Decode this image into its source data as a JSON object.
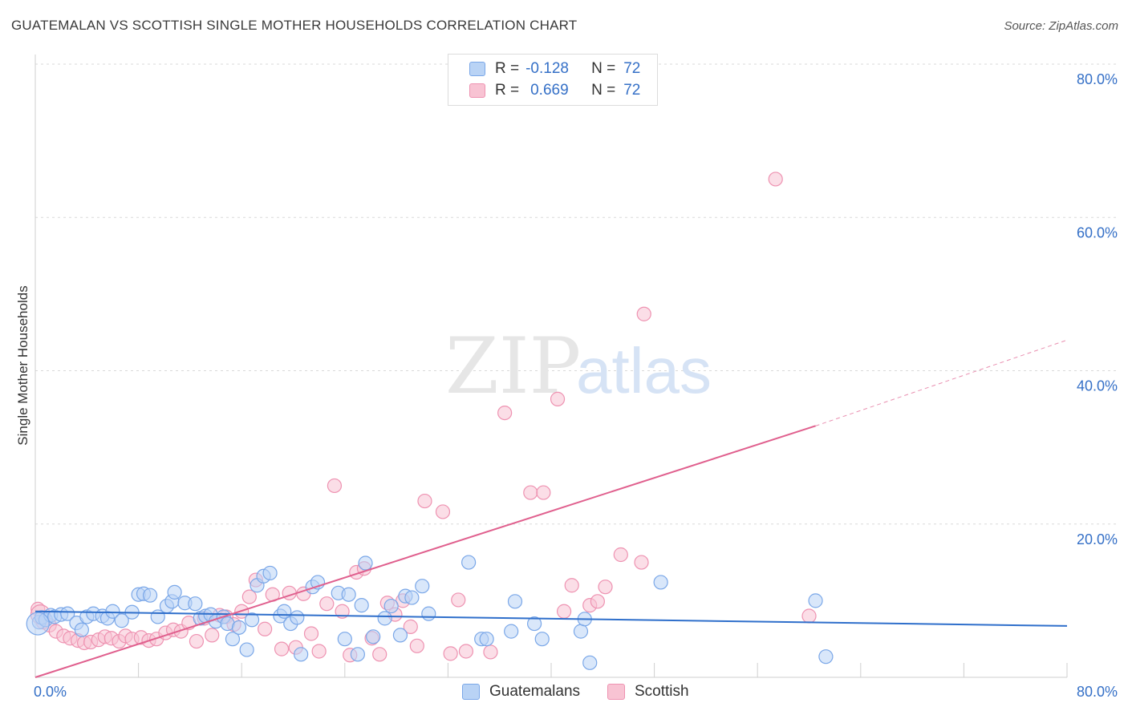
{
  "title": "GUATEMALAN VS SCOTTISH SINGLE MOTHER HOUSEHOLDS CORRELATION CHART",
  "source": "Source: ZipAtlas.com",
  "watermark": {
    "zip": "ZIP",
    "atlas": "atlas"
  },
  "colors": {
    "blue_fill": "#b9d3f5",
    "blue_stroke": "#7aa7e8",
    "blue_line": "#2f6fcb",
    "pink_fill": "#f8c3d3",
    "pink_stroke": "#ee92b1",
    "pink_line": "#e0608e",
    "axis_text": "#3570c7"
  },
  "legend": {
    "rows": [
      {
        "r_label": "R =",
        "r_value": "-0.128",
        "n_label": "N =",
        "n_value": "72"
      },
      {
        "r_label": "R =",
        "r_value": "0.669",
        "n_label": "N =",
        "n_value": "72"
      }
    ]
  },
  "bottom_legend": {
    "blue": "Guatemalans",
    "pink": "Scottish"
  },
  "chart_data": {
    "type": "scatter",
    "title": "GUATEMALAN VS SCOTTISH SINGLE MOTHER HOUSEHOLDS CORRELATION CHART",
    "xlabel": "",
    "ylabel": "Single Mother Households",
    "xlim": [
      0,
      80
    ],
    "ylim": [
      0,
      82
    ],
    "x_tick_labels": [
      "0.0%",
      "80.0%"
    ],
    "y_tick_values": [
      20,
      40,
      60,
      80
    ],
    "y_tick_labels": [
      "20.0%",
      "40.0%",
      "60.0%",
      "80.0%"
    ],
    "series": [
      {
        "name": "Guatemalans",
        "r": -0.128,
        "n": 72,
        "trend": {
          "x0": 0,
          "y0": 8.6,
          "x1": 80,
          "y1": 6.7
        },
        "points": [
          [
            0.3,
            7.2
          ],
          [
            0.5,
            7.8
          ],
          [
            0.8,
            7.5
          ],
          [
            1.2,
            8.1
          ],
          [
            1.5,
            7.9
          ],
          [
            2.0,
            8.2
          ],
          [
            2.5,
            8.3
          ],
          [
            3.2,
            7.1
          ],
          [
            3.6,
            6.2
          ],
          [
            4.0,
            7.9
          ],
          [
            4.5,
            8.3
          ],
          [
            5.2,
            8.0
          ],
          [
            5.6,
            7.7
          ],
          [
            6.0,
            8.6
          ],
          [
            6.7,
            7.4
          ],
          [
            7.5,
            8.5
          ],
          [
            8.0,
            10.8
          ],
          [
            8.4,
            10.9
          ],
          [
            8.9,
            10.7
          ],
          [
            9.5,
            7.9
          ],
          [
            10.2,
            9.3
          ],
          [
            10.6,
            9.9
          ],
          [
            10.8,
            11.1
          ],
          [
            11.6,
            9.7
          ],
          [
            12.4,
            9.6
          ],
          [
            12.8,
            7.7
          ],
          [
            13.2,
            8.0
          ],
          [
            13.6,
            8.2
          ],
          [
            14.0,
            7.3
          ],
          [
            14.6,
            7.9
          ],
          [
            14.9,
            7.0
          ],
          [
            15.3,
            5.0
          ],
          [
            15.8,
            6.5
          ],
          [
            16.4,
            3.6
          ],
          [
            16.8,
            7.5
          ],
          [
            17.2,
            12.0
          ],
          [
            17.7,
            13.2
          ],
          [
            18.2,
            13.6
          ],
          [
            19.0,
            8.0
          ],
          [
            19.3,
            8.6
          ],
          [
            19.8,
            7.0
          ],
          [
            20.3,
            7.8
          ],
          [
            20.6,
            3.0
          ],
          [
            21.5,
            11.8
          ],
          [
            21.9,
            12.4
          ],
          [
            23.5,
            11.0
          ],
          [
            24.0,
            5.0
          ],
          [
            24.3,
            10.8
          ],
          [
            25.0,
            3.0
          ],
          [
            25.3,
            9.4
          ],
          [
            25.6,
            14.9
          ],
          [
            26.2,
            5.3
          ],
          [
            27.1,
            7.7
          ],
          [
            27.6,
            9.3
          ],
          [
            28.3,
            5.5
          ],
          [
            28.7,
            10.6
          ],
          [
            29.2,
            10.4
          ],
          [
            30.0,
            11.9
          ],
          [
            30.5,
            8.3
          ],
          [
            33.6,
            15.0
          ],
          [
            34.6,
            5.0
          ],
          [
            35.0,
            5.0
          ],
          [
            36.9,
            6.0
          ],
          [
            37.2,
            9.9
          ],
          [
            38.7,
            7.0
          ],
          [
            39.3,
            5.0
          ],
          [
            42.3,
            6.0
          ],
          [
            42.6,
            7.6
          ],
          [
            43.0,
            1.9
          ],
          [
            48.5,
            12.4
          ],
          [
            60.5,
            10.0
          ],
          [
            61.3,
            2.7
          ]
        ]
      },
      {
        "name": "Scottish",
        "r": 0.669,
        "n": 72,
        "trend": {
          "x0": 0,
          "y0": 0,
          "x1": 60.5,
          "y1": 32.8,
          "dash_x1": 80,
          "dash_y1": 44
        },
        "points": [
          [
            0.2,
            8.9
          ],
          [
            0.6,
            7.2
          ],
          [
            1.1,
            6.8
          ],
          [
            1.6,
            6.0
          ],
          [
            2.2,
            5.4
          ],
          [
            2.7,
            5.1
          ],
          [
            3.3,
            4.8
          ],
          [
            3.8,
            4.5
          ],
          [
            4.3,
            4.6
          ],
          [
            4.9,
            4.9
          ],
          [
            5.4,
            5.3
          ],
          [
            5.9,
            5.1
          ],
          [
            6.5,
            4.7
          ],
          [
            7.0,
            5.4
          ],
          [
            7.5,
            5.0
          ],
          [
            8.2,
            5.2
          ],
          [
            8.8,
            4.8
          ],
          [
            9.4,
            5.0
          ],
          [
            10.1,
            5.8
          ],
          [
            10.7,
            6.2
          ],
          [
            11.3,
            6.0
          ],
          [
            11.9,
            7.1
          ],
          [
            12.5,
            4.7
          ],
          [
            13.1,
            7.7
          ],
          [
            13.7,
            5.5
          ],
          [
            14.3,
            8.1
          ],
          [
            14.8,
            7.9
          ],
          [
            15.4,
            6.9
          ],
          [
            16.0,
            8.6
          ],
          [
            16.6,
            10.5
          ],
          [
            17.1,
            12.7
          ],
          [
            17.8,
            6.3
          ],
          [
            18.4,
            10.8
          ],
          [
            19.1,
            3.7
          ],
          [
            19.7,
            11.0
          ],
          [
            20.2,
            3.9
          ],
          [
            20.8,
            10.9
          ],
          [
            21.4,
            5.7
          ],
          [
            22.0,
            3.4
          ],
          [
            22.6,
            9.6
          ],
          [
            23.2,
            25.0
          ],
          [
            23.8,
            8.6
          ],
          [
            24.4,
            2.9
          ],
          [
            24.9,
            13.7
          ],
          [
            25.5,
            14.2
          ],
          [
            26.1,
            5.1
          ],
          [
            26.7,
            3.0
          ],
          [
            27.3,
            9.7
          ],
          [
            27.9,
            8.2
          ],
          [
            28.5,
            10.0
          ],
          [
            29.1,
            6.6
          ],
          [
            29.6,
            4.1
          ],
          [
            30.2,
            23.0
          ],
          [
            31.6,
            21.6
          ],
          [
            32.2,
            3.1
          ],
          [
            32.8,
            10.1
          ],
          [
            33.4,
            3.4
          ],
          [
            35.3,
            3.3
          ],
          [
            36.4,
            34.5
          ],
          [
            38.4,
            24.1
          ],
          [
            39.4,
            24.1
          ],
          [
            40.5,
            36.3
          ],
          [
            41.0,
            8.6
          ],
          [
            41.6,
            12.0
          ],
          [
            43.0,
            9.4
          ],
          [
            43.6,
            9.9
          ],
          [
            44.2,
            11.8
          ],
          [
            45.4,
            16.0
          ],
          [
            47.0,
            15.0
          ],
          [
            47.2,
            47.4
          ],
          [
            57.4,
            65.0
          ],
          [
            60.0,
            8.0
          ]
        ]
      }
    ]
  }
}
